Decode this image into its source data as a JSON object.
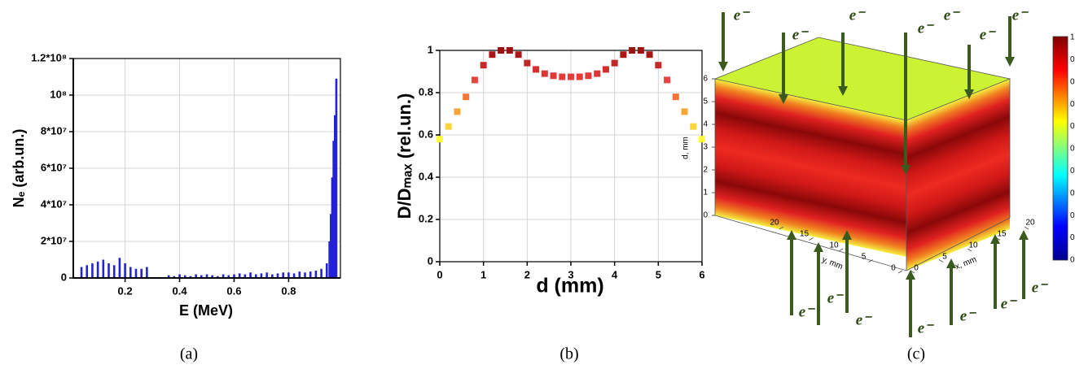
{
  "chart_data": [
    {
      "type": "bar",
      "caption": "(a)",
      "x_label": "E (MeV)",
      "y_label": "Nₑ (arb.un.)",
      "color": "#2323d2",
      "grid": true,
      "xlim": [
        0.01,
        0.99
      ],
      "xticks": [
        0.2,
        0.4,
        0.6,
        0.8
      ],
      "ylim": [
        0,
        120000000
      ],
      "yticks": [
        0,
        {
          "value": 20000000,
          "label": "2*10⁷"
        },
        {
          "value": 40000000,
          "label": "4*10⁷"
        },
        {
          "value": 60000000,
          "label": "6*10⁷"
        },
        {
          "value": 80000000,
          "label": "8*10⁷"
        },
        {
          "value": 100000000,
          "label": "10⁸"
        },
        {
          "value": 120000000,
          "label": "1.2*10⁸"
        }
      ],
      "x": [
        0.04,
        0.06,
        0.08,
        0.1,
        0.12,
        0.14,
        0.16,
        0.18,
        0.2,
        0.22,
        0.24,
        0.26,
        0.28,
        0.36,
        0.38,
        0.4,
        0.42,
        0.44,
        0.46,
        0.48,
        0.5,
        0.52,
        0.54,
        0.56,
        0.58,
        0.6,
        0.62,
        0.64,
        0.66,
        0.68,
        0.7,
        0.72,
        0.74,
        0.76,
        0.78,
        0.8,
        0.82,
        0.84,
        0.86,
        0.88,
        0.9,
        0.92,
        0.94,
        0.95,
        0.955,
        0.96,
        0.965,
        0.97,
        0.975
      ],
      "values": [
        6000000,
        7000000,
        8000000,
        9000000,
        10000000,
        8000000,
        7000000,
        11000000,
        8000000,
        6000000,
        5000000,
        5000000,
        6000000,
        1500000,
        1000000,
        2000000,
        1500000,
        1000000,
        2000000,
        1500000,
        2000000,
        1500000,
        1000000,
        2000000,
        1500000,
        2000000,
        2500000,
        2000000,
        3000000,
        2000000,
        2500000,
        3000000,
        2000000,
        2500000,
        3000000,
        3000000,
        2500000,
        3500000,
        3000000,
        3500000,
        4000000,
        5000000,
        8000000,
        20000000,
        35000000,
        55000000,
        75000000,
        89000000,
        109000000
      ]
    },
    {
      "type": "scatter",
      "caption": "(b)",
      "x_label": "d (mm)",
      "y_label": "D/Dₘₐₓ (rel.un.)",
      "grid": true,
      "colormap": [
        "#ffff40",
        "#f5a030",
        "#ee4040",
        "#a01010"
      ],
      "xlim": [
        0,
        6
      ],
      "xticks": [
        0,
        1,
        2,
        3,
        4,
        5,
        6
      ],
      "ylim": [
        0,
        1
      ],
      "yticks": [
        0,
        0.2,
        0.4,
        0.6,
        0.8,
        1
      ],
      "x": [
        0,
        0.2,
        0.4,
        0.6,
        0.8,
        1.0,
        1.2,
        1.4,
        1.6,
        1.8,
        2.0,
        2.2,
        2.4,
        2.6,
        2.8,
        3.0,
        3.2,
        3.4,
        3.6,
        3.8,
        4.0,
        4.2,
        4.4,
        4.6,
        4.8,
        5.0,
        5.2,
        5.4,
        5.6,
        5.8,
        6.0
      ],
      "values": [
        0.58,
        0.64,
        0.71,
        0.78,
        0.86,
        0.93,
        0.98,
        1.0,
        1.0,
        0.98,
        0.94,
        0.91,
        0.89,
        0.88,
        0.875,
        0.875,
        0.875,
        0.88,
        0.89,
        0.91,
        0.94,
        0.98,
        1.0,
        1.0,
        0.98,
        0.93,
        0.86,
        0.78,
        0.71,
        0.64,
        0.58
      ]
    },
    {
      "type": "cube",
      "caption": "(c)",
      "z_label": "d, mm",
      "y_label": "y, mm",
      "x_label": "x, mm",
      "annotation": "e⁻",
      "top_color": "#ccf234",
      "arrow_color": "#3b5a1d",
      "zlim": [
        0,
        6
      ],
      "zticks": [
        0,
        1,
        2,
        3,
        4,
        5,
        6
      ],
      "ylim": [
        0,
        20
      ],
      "yticks": [
        0,
        5,
        10,
        15,
        20
      ],
      "xlim": [
        0,
        20
      ],
      "xticks": [
        0,
        5,
        10,
        15,
        20
      ],
      "colorbar_labels": [
        "1",
        "0",
        "0",
        "0",
        "0",
        "0",
        "0",
        "0",
        "0",
        "0",
        "0"
      ]
    }
  ]
}
